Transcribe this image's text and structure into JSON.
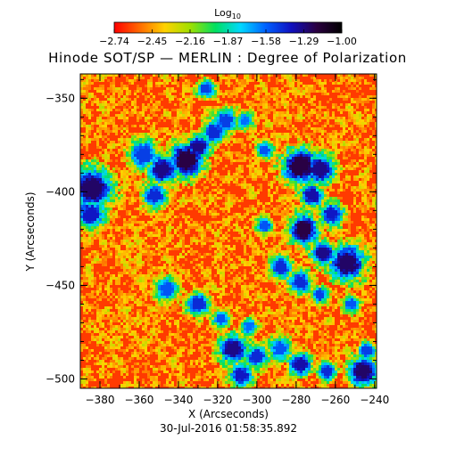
{
  "chart_data": {
    "type": "heatmap",
    "title": "Hinode SOT/SP — MERLIN : Degree of Polarization",
    "xlabel": "X (Arcseconds)",
    "ylabel": "Y (Arcseconds)",
    "xlim": [
      -390,
      -239
    ],
    "ylim": [
      -505,
      -337
    ],
    "x_ticks": [
      -380,
      -360,
      -340,
      -320,
      -300,
      -280,
      -260,
      -240
    ],
    "x_tick_labels": [
      "−380",
      "−360",
      "−340",
      "−320",
      "−300",
      "−280",
      "−260",
      "−240"
    ],
    "y_ticks": [
      -350,
      -400,
      -450,
      -500
    ],
    "y_tick_labels": [
      "−350",
      "−400",
      "−450",
      "−500"
    ],
    "colorbar": {
      "label_main": "Log",
      "label_sub": "10",
      "range": [
        -2.74,
        -1.0
      ],
      "ticks": [
        -2.74,
        -2.45,
        -2.16,
        -1.87,
        -1.58,
        -1.29,
        -1.0
      ],
      "tick_labels": [
        "−2.74",
        "−2.45",
        "−2.16",
        "−1.87",
        "−1.58",
        "−1.29",
        "−1.00"
      ],
      "colormap": [
        "#ff0000",
        "#ff6a00",
        "#ffd200",
        "#a0e000",
        "#00e060",
        "#00d8ff",
        "#0060ff",
        "#1010c0",
        "#2a0040",
        "#000000"
      ]
    },
    "features": [
      {
        "x": -384,
        "y": -398,
        "r": 7,
        "v": -1.25
      },
      {
        "x": -385,
        "y": -412,
        "r": 5,
        "v": -1.4
      },
      {
        "x": -358,
        "y": -380,
        "r": 5,
        "v": -1.5
      },
      {
        "x": -348,
        "y": -388,
        "r": 5,
        "v": -1.3
      },
      {
        "x": -336,
        "y": -383,
        "r": 6,
        "v": -1.2
      },
      {
        "x": -330,
        "y": -376,
        "r": 4,
        "v": -1.3
      },
      {
        "x": -352,
        "y": -402,
        "r": 4,
        "v": -1.45
      },
      {
        "x": -322,
        "y": -368,
        "r": 4,
        "v": -1.45
      },
      {
        "x": -316,
        "y": -362,
        "r": 4,
        "v": -1.5
      },
      {
        "x": -306,
        "y": -362,
        "r": 3,
        "v": -1.6
      },
      {
        "x": -296,
        "y": -378,
        "r": 3,
        "v": -1.55
      },
      {
        "x": -326,
        "y": -345,
        "r": 3,
        "v": -1.5
      },
      {
        "x": -278,
        "y": -386,
        "r": 6,
        "v": -1.2
      },
      {
        "x": -268,
        "y": -388,
        "r": 5,
        "v": -1.3
      },
      {
        "x": -272,
        "y": -402,
        "r": 4,
        "v": -1.35
      },
      {
        "x": -276,
        "y": -420,
        "r": 5,
        "v": -1.2
      },
      {
        "x": -262,
        "y": -412,
        "r": 4,
        "v": -1.4
      },
      {
        "x": -266,
        "y": -433,
        "r": 4,
        "v": -1.3
      },
      {
        "x": -254,
        "y": -438,
        "r": 6,
        "v": -1.25
      },
      {
        "x": -288,
        "y": -440,
        "r": 4,
        "v": -1.45
      },
      {
        "x": -296,
        "y": -418,
        "r": 3,
        "v": -1.55
      },
      {
        "x": -278,
        "y": -448,
        "r": 4,
        "v": -1.45
      },
      {
        "x": -268,
        "y": -455,
        "r": 3,
        "v": -1.5
      },
      {
        "x": -252,
        "y": -460,
        "r": 3,
        "v": -1.55
      },
      {
        "x": -304,
        "y": -472,
        "r": 3,
        "v": -1.6
      },
      {
        "x": -346,
        "y": -452,
        "r": 4,
        "v": -1.55
      },
      {
        "x": -330,
        "y": -460,
        "r": 4,
        "v": -1.45
      },
      {
        "x": -318,
        "y": -468,
        "r": 3,
        "v": -1.55
      },
      {
        "x": -312,
        "y": -484,
        "r": 5,
        "v": -1.3
      },
      {
        "x": -300,
        "y": -488,
        "r": 4,
        "v": -1.45
      },
      {
        "x": -308,
        "y": -498,
        "r": 4,
        "v": -1.4
      },
      {
        "x": -288,
        "y": -484,
        "r": 4,
        "v": -1.55
      },
      {
        "x": -278,
        "y": -492,
        "r": 4,
        "v": -1.35
      },
      {
        "x": -264,
        "y": -496,
        "r": 3,
        "v": -1.45
      },
      {
        "x": -246,
        "y": -496,
        "r": 5,
        "v": -1.25
      },
      {
        "x": -244,
        "y": -485,
        "r": 3,
        "v": -1.5
      }
    ]
  },
  "footer": {
    "timestamp": "30-Jul-2016 01:58:35.892"
  }
}
